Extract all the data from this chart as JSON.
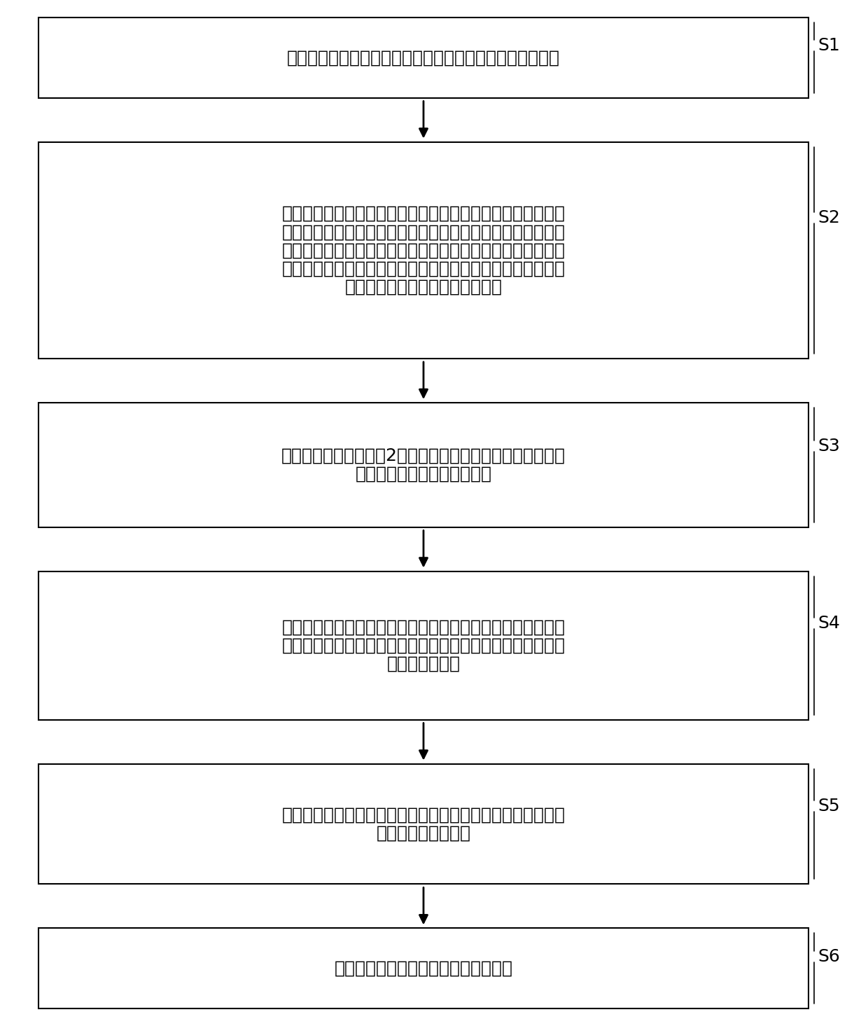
{
  "steps": [
    {
      "id": "S1",
      "lines": [
        "提供氧化物单晶衬底，所述氧化物单晶衬底的一面为注入面"
      ]
    },
    {
      "id": "S2",
      "lines": [
        "自所述注入面向所述氧化物单晶衬底内进行离子注入，而后在",
        "所述注入面形成下电极；或在所述注入面形成下电极，而后自",
        "所述注入面向所述氧化物单晶衬底内进行离子注入；离子注入",
        "的能量足以使注入离子到达所述氧化物单晶衬底内的预设深度",
        "，并在所述预设深度处形成缺陷层"
      ]
    },
    {
      "id": "S3",
      "lines": [
        "提供支撑衬底，将步骤2）得到的结构与所述支撑衬底键合，",
        "且所述下电极的表面为键合面"
      ]
    },
    {
      "id": "S4",
      "lines": [
        "沿所述缺陷层剥离部分所述氧化物单晶硅衬底以得到氧化物单",
        "晶薄膜，并使得到的所述氧化物单晶薄膜及所述下电极转移至",
        "所述支撑衬底上"
      ]
    },
    {
      "id": "S5",
      "lines": [
        "自所述支撑衬底的底部腐蚀所述支撑衬底以形成空腔，所述空",
        "腔暴露出所述下电极"
      ]
    },
    {
      "id": "S6",
      "lines": [
        "在所述氧化物单晶薄膜表面形成上电极"
      ]
    }
  ],
  "box_color": "#ffffff",
  "border_color": "#000000",
  "text_color": "#000000",
  "arrow_color": "#000000",
  "label_color": "#000000",
  "background_color": "#ffffff",
  "font_size": 18,
  "label_font_size": 18
}
